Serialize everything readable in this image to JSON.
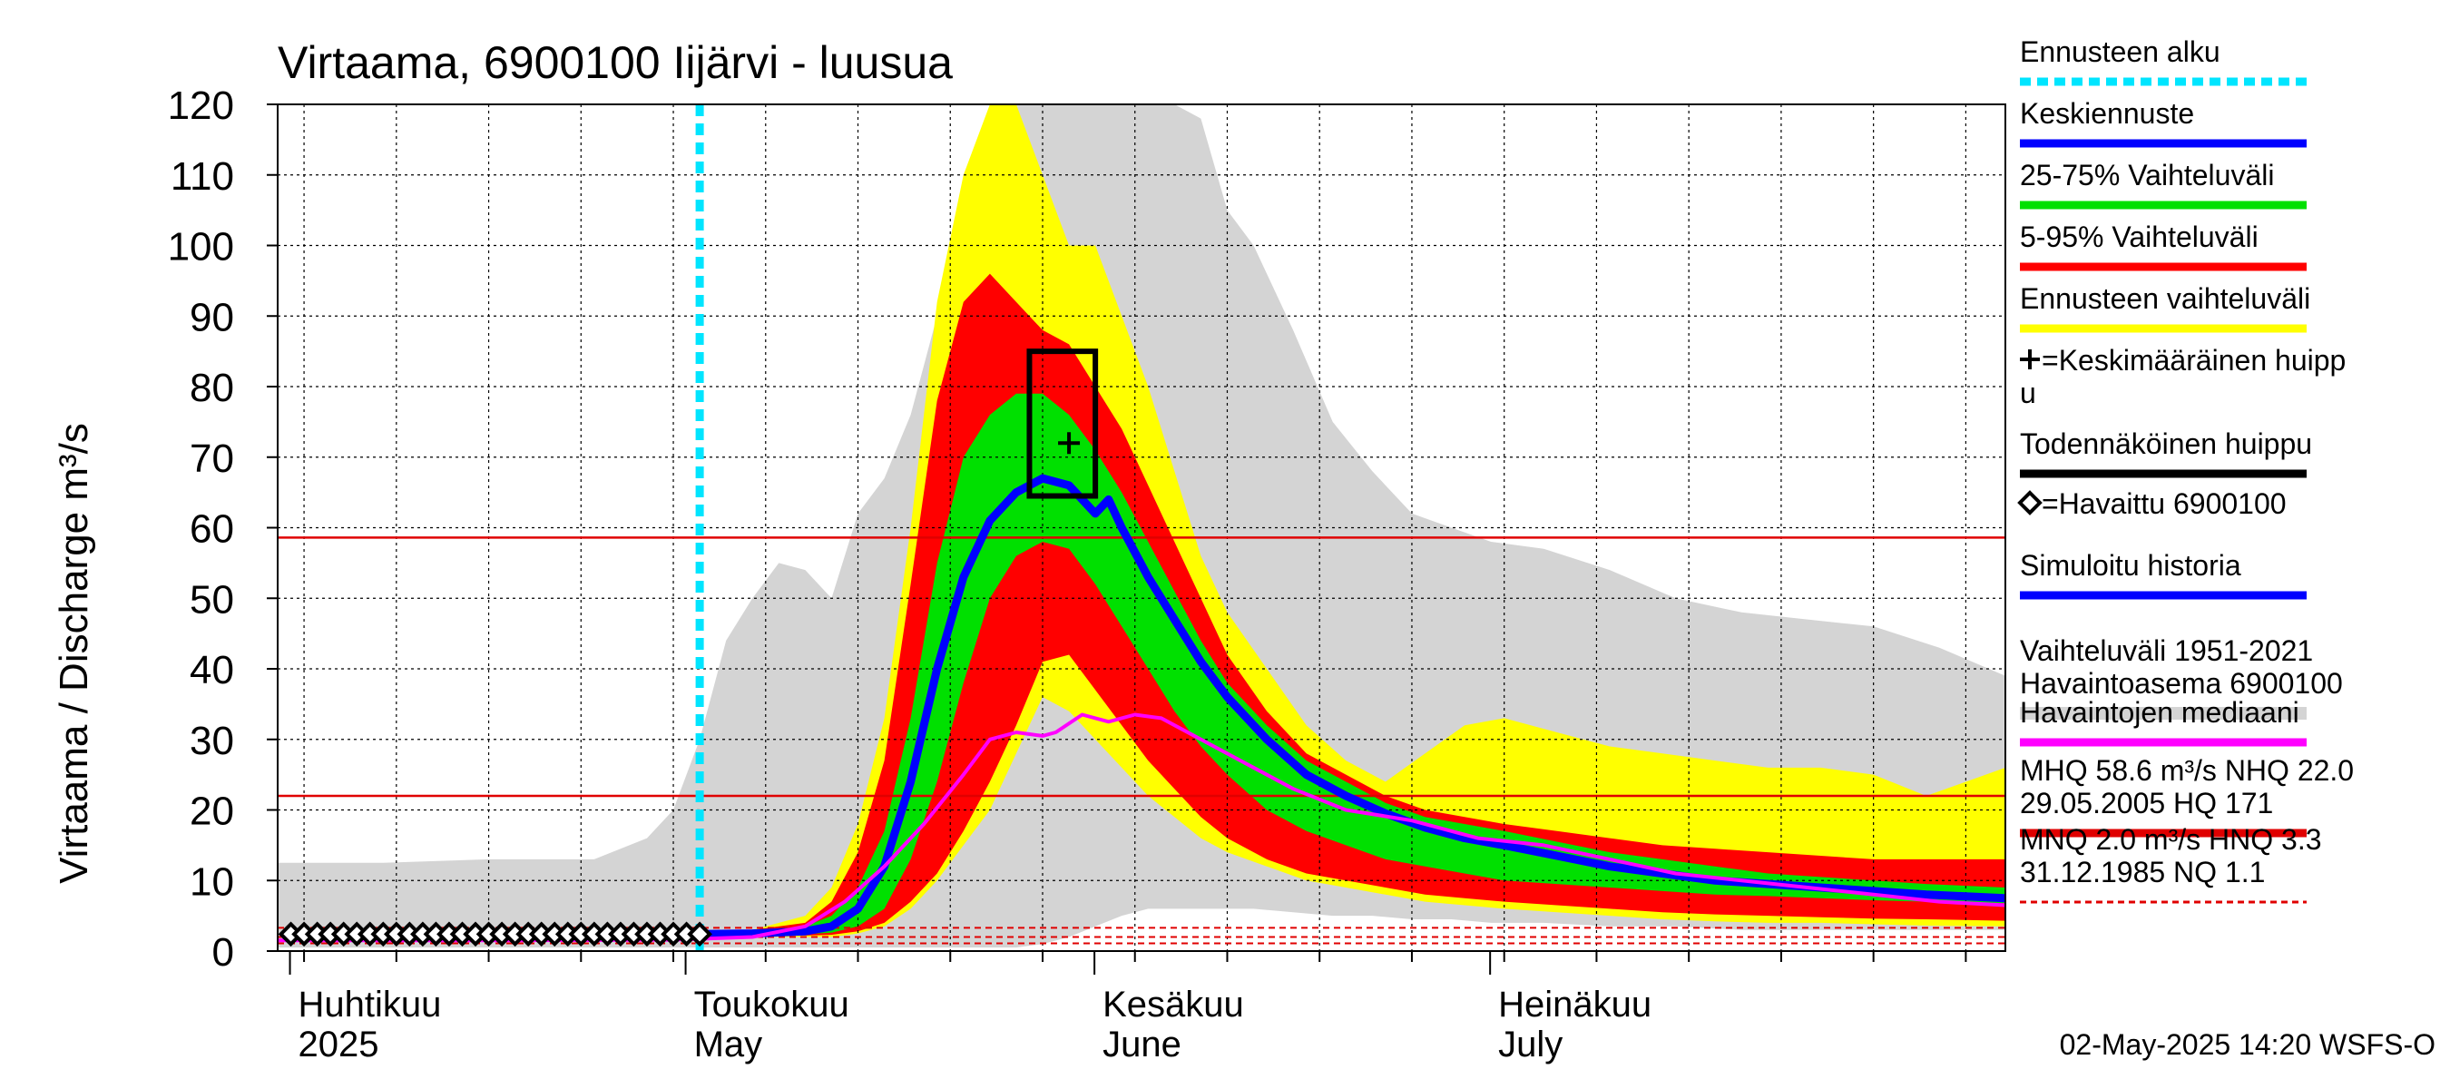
{
  "chart_data": {
    "type": "area",
    "title": "Virtaama, 6900100 Iijärvi - luusua",
    "ylabel": "Virtaama / Discharge    m³/s",
    "ylim": [
      0,
      120
    ],
    "yticks": [
      0,
      10,
      20,
      30,
      40,
      50,
      60,
      70,
      80,
      90,
      100,
      110,
      120
    ],
    "xlim": [
      "2025-03-31",
      "2025-08-09"
    ],
    "month_labels": [
      {
        "date": "2025-04-01",
        "line1": "Huhtikuu",
        "line2": "2025"
      },
      {
        "date": "2025-05-01",
        "line1": "Toukokuu",
        "line2": "May"
      },
      {
        "date": "2025-06-01",
        "line1": "Kesäkuu",
        "line2": "June"
      },
      {
        "date": "2025-07-01",
        "line1": "Heinäkuu",
        "line2": "July"
      }
    ],
    "forecast_start": "2025-05-02",
    "reference_lines": [
      {
        "name": "MHQ",
        "value": 58.6,
        "style": "solid",
        "color": "#e00000"
      },
      {
        "name": "NHQ",
        "value": 22.0,
        "style": "solid",
        "color": "#e00000"
      },
      {
        "name": "MNQ",
        "value": 2.0,
        "style": "dashed",
        "color": "#e00000"
      },
      {
        "name": "HNQ",
        "value": 3.3,
        "style": "dashed",
        "color": "#e00000"
      },
      {
        "name": "NQ",
        "value": 1.1,
        "style": "dashed",
        "color": "#e00000"
      }
    ],
    "probable_peak_box": {
      "x0": "2025-05-27",
      "x1": "2025-06-01",
      "y0": 64.5,
      "y1": 85
    },
    "mean_peak": {
      "date": "2025-05-30",
      "value": 72
    },
    "series": [
      {
        "name": "Vaihteluväli 1951-2021 Havaintoasema 6900100",
        "kind": "band",
        "color": "#d4d4d4",
        "x": [
          "2025-03-31",
          "2025-04-08",
          "2025-04-16",
          "2025-04-24",
          "2025-04-28",
          "2025-04-30",
          "2025-05-02",
          "2025-05-04",
          "2025-05-06",
          "2025-05-08",
          "2025-05-10",
          "2025-05-12",
          "2025-05-14",
          "2025-05-16",
          "2025-05-18",
          "2025-05-20",
          "2025-05-22",
          "2025-05-24",
          "2025-05-26",
          "2025-05-28",
          "2025-05-30",
          "2025-06-01",
          "2025-06-03",
          "2025-06-05",
          "2025-06-07",
          "2025-06-09",
          "2025-06-11",
          "2025-06-13",
          "2025-06-16",
          "2025-06-19",
          "2025-06-22",
          "2025-06-25",
          "2025-06-28",
          "2025-07-01",
          "2025-07-05",
          "2025-07-10",
          "2025-07-15",
          "2025-07-20",
          "2025-07-25",
          "2025-07-30",
          "2025-08-04",
          "2025-08-09"
        ],
        "lower": [
          0.5,
          0.5,
          0.5,
          0.5,
          0.5,
          0.5,
          0.5,
          0.5,
          0.5,
          0.5,
          0.5,
          0.5,
          0.5,
          0.5,
          0.5,
          0.5,
          0.5,
          0.5,
          0.5,
          1.0,
          2.0,
          3.5,
          5.0,
          6.0,
          6.0,
          6.0,
          6.0,
          6.0,
          5.5,
          5.0,
          5.0,
          4.5,
          4.5,
          4.0,
          4.0,
          3.5,
          3.5,
          3.0,
          3.0,
          3.0,
          3.0,
          3.0
        ],
        "upper": [
          12.5,
          12.5,
          13,
          13,
          16,
          20,
          30,
          44,
          50,
          55,
          54,
          50,
          62,
          67,
          76,
          90,
          105,
          120,
          120,
          120,
          120,
          120,
          120,
          120,
          120,
          118,
          105,
          100,
          88,
          75,
          68,
          62,
          60,
          58,
          57,
          54,
          50,
          48,
          47,
          46,
          43,
          39
        ]
      },
      {
        "name": "Ennusteen vaihteluväli",
        "kind": "band",
        "color": "#ffff00",
        "x": [
          "2025-05-02",
          "2025-05-06",
          "2025-05-10",
          "2025-05-12",
          "2025-05-14",
          "2025-05-16",
          "2025-05-18",
          "2025-05-20",
          "2025-05-22",
          "2025-05-24",
          "2025-05-26",
          "2025-05-28",
          "2025-05-30",
          "2025-06-01",
          "2025-06-03",
          "2025-06-05",
          "2025-06-07",
          "2025-06-09",
          "2025-06-11",
          "2025-06-14",
          "2025-06-17",
          "2025-06-20",
          "2025-06-23",
          "2025-06-26",
          "2025-06-29",
          "2025-07-02",
          "2025-07-06",
          "2025-07-10",
          "2025-07-14",
          "2025-07-18",
          "2025-07-22",
          "2025-07-26",
          "2025-07-30",
          "2025-08-03",
          "2025-08-09"
        ],
        "lower": [
          2.0,
          2.0,
          2.0,
          2.0,
          2.5,
          3.5,
          6,
          10,
          15,
          20,
          28,
          36,
          34,
          30,
          26,
          22,
          19,
          16,
          14,
          12,
          10,
          9,
          8,
          7,
          6.5,
          6,
          5.5,
          5,
          4.5,
          4.2,
          4,
          4,
          3.8,
          3.6,
          3.5
        ],
        "upper": [
          2.5,
          3,
          5,
          9,
          18,
          33,
          60,
          92,
          110,
          120,
          120,
          110,
          100,
          100,
          90,
          80,
          68,
          56,
          48,
          40,
          32,
          27,
          24,
          28,
          32,
          33,
          31,
          29,
          28,
          27,
          26,
          26,
          25,
          22,
          26
        ]
      },
      {
        "name": "5-95% Vaihteluväli",
        "kind": "band",
        "color": "#ff0000",
        "x": [
          "2025-05-02",
          "2025-05-06",
          "2025-05-10",
          "2025-05-12",
          "2025-05-14",
          "2025-05-16",
          "2025-05-18",
          "2025-05-20",
          "2025-05-22",
          "2025-05-24",
          "2025-05-26",
          "2025-05-28",
          "2025-05-30",
          "2025-06-01",
          "2025-06-03",
          "2025-06-05",
          "2025-06-07",
          "2025-06-09",
          "2025-06-11",
          "2025-06-14",
          "2025-06-17",
          "2025-06-20",
          "2025-06-23",
          "2025-06-26",
          "2025-06-29",
          "2025-07-02",
          "2025-07-06",
          "2025-07-10",
          "2025-07-14",
          "2025-07-18",
          "2025-07-22",
          "2025-07-26",
          "2025-07-30",
          "2025-08-03",
          "2025-08-09"
        ],
        "lower": [
          2.2,
          2.2,
          2.2,
          2.3,
          2.8,
          4,
          7,
          11,
          17,
          24,
          32,
          41,
          42,
          37,
          32,
          27,
          23,
          19,
          16,
          13,
          11,
          10,
          9,
          8,
          7.5,
          7,
          6.5,
          6,
          5.5,
          5.2,
          5,
          4.8,
          4.6,
          4.5,
          4.3
        ],
        "upper": [
          2.5,
          3,
          4,
          7,
          14,
          27,
          52,
          78,
          92,
          96,
          92,
          88,
          86,
          80,
          74,
          66,
          58,
          50,
          42,
          34,
          28,
          25,
          22,
          20,
          19,
          18,
          17,
          16,
          15,
          14.5,
          14,
          13.5,
          13,
          13,
          13
        ]
      },
      {
        "name": "25-75% Vaihteluväli",
        "kind": "band",
        "color": "#00e000",
        "x": [
          "2025-05-02",
          "2025-05-06",
          "2025-05-10",
          "2025-05-12",
          "2025-05-14",
          "2025-05-16",
          "2025-05-18",
          "2025-05-20",
          "2025-05-22",
          "2025-05-24",
          "2025-05-26",
          "2025-05-28",
          "2025-05-30",
          "2025-06-01",
          "2025-06-03",
          "2025-06-05",
          "2025-06-07",
          "2025-06-09",
          "2025-06-11",
          "2025-06-14",
          "2025-06-17",
          "2025-06-20",
          "2025-06-23",
          "2025-06-26",
          "2025-06-29",
          "2025-07-02",
          "2025-07-06",
          "2025-07-10",
          "2025-07-14",
          "2025-07-18",
          "2025-07-22",
          "2025-07-26",
          "2025-07-30",
          "2025-08-03",
          "2025-08-09"
        ],
        "lower": [
          2.3,
          2.3,
          2.4,
          2.6,
          3.5,
          6,
          13,
          24,
          38,
          50,
          56,
          58,
          57,
          52,
          46,
          40,
          34,
          29,
          25,
          20,
          17,
          15,
          13,
          12,
          11,
          10,
          9.5,
          9,
          8.5,
          8,
          7.8,
          7.5,
          7.2,
          7,
          6.8
        ],
        "upper": [
          2.5,
          2.8,
          3.5,
          5,
          9,
          17,
          33,
          55,
          70,
          76,
          79,
          79,
          76,
          71,
          65,
          58,
          51,
          44,
          38,
          32,
          27,
          24,
          21,
          19,
          18,
          17,
          15.5,
          14,
          13,
          12,
          11,
          10.5,
          10,
          9.5,
          9
        ]
      },
      {
        "name": "Keskiennuste",
        "kind": "line",
        "color": "#0000ff",
        "x": [
          "2025-05-02",
          "2025-05-06",
          "2025-05-10",
          "2025-05-12",
          "2025-05-14",
          "2025-05-16",
          "2025-05-18",
          "2025-05-20",
          "2025-05-22",
          "2025-05-24",
          "2025-05-26",
          "2025-05-28",
          "2025-05-30",
          "2025-06-01",
          "2025-06-02",
          "2025-06-03",
          "2025-06-05",
          "2025-06-07",
          "2025-06-09",
          "2025-06-11",
          "2025-06-14",
          "2025-06-17",
          "2025-06-20",
          "2025-06-23",
          "2025-06-26",
          "2025-06-29",
          "2025-07-02",
          "2025-07-06",
          "2025-07-10",
          "2025-07-14",
          "2025-07-18",
          "2025-07-22",
          "2025-07-26",
          "2025-07-30",
          "2025-08-03",
          "2025-08-09"
        ],
        "y": [
          2.4,
          2.5,
          2.8,
          3.5,
          6,
          12,
          24,
          40,
          53,
          61,
          65,
          67,
          66,
          62,
          64,
          60,
          53,
          47,
          41,
          36,
          30,
          25,
          22,
          19.5,
          17.5,
          16,
          15,
          13.5,
          12,
          11,
          10,
          9.5,
          9,
          8.5,
          8,
          7.5
        ]
      },
      {
        "name": "Havaintojen mediaani",
        "kind": "line",
        "color": "#ff00ff",
        "x": [
          "2025-03-31",
          "2025-04-15",
          "2025-04-30",
          "2025-05-06",
          "2025-05-10",
          "2025-05-13",
          "2025-05-16",
          "2025-05-19",
          "2025-05-22",
          "2025-05-24",
          "2025-05-26",
          "2025-05-28",
          "2025-05-29",
          "2025-05-31",
          "2025-06-02",
          "2025-06-04",
          "2025-06-06",
          "2025-06-09",
          "2025-06-12",
          "2025-06-16",
          "2025-06-20",
          "2025-06-25",
          "2025-06-30",
          "2025-07-05",
          "2025-07-10",
          "2025-07-15",
          "2025-07-20",
          "2025-07-25",
          "2025-07-30",
          "2025-08-04",
          "2025-08-09"
        ],
        "y": [
          1.5,
          1.5,
          1.6,
          2.0,
          3.5,
          7,
          12,
          18,
          25,
          30,
          31,
          30.5,
          31,
          33.5,
          32.5,
          33.5,
          33,
          30,
          27,
          23,
          20,
          18.5,
          16,
          15,
          13,
          11,
          10,
          9,
          8,
          7,
          6.5
        ]
      },
      {
        "name": "Havaittu 6900100",
        "kind": "markers",
        "color": "#000000",
        "x": [
          "2025-04-01",
          "2025-04-02",
          "2025-04-03",
          "2025-04-04",
          "2025-04-05",
          "2025-04-06",
          "2025-04-07",
          "2025-04-08",
          "2025-04-09",
          "2025-04-10",
          "2025-04-11",
          "2025-04-12",
          "2025-04-13",
          "2025-04-14",
          "2025-04-15",
          "2025-04-16",
          "2025-04-17",
          "2025-04-18",
          "2025-04-19",
          "2025-04-20",
          "2025-04-21",
          "2025-04-22",
          "2025-04-23",
          "2025-04-24",
          "2025-04-25",
          "2025-04-26",
          "2025-04-27",
          "2025-04-28",
          "2025-04-29",
          "2025-04-30",
          "2025-05-01",
          "2025-05-02"
        ],
        "y": [
          2.4,
          2.4,
          2.4,
          2.4,
          2.4,
          2.4,
          2.4,
          2.4,
          2.4,
          2.4,
          2.4,
          2.4,
          2.4,
          2.4,
          2.4,
          2.4,
          2.4,
          2.4,
          2.4,
          2.4,
          2.4,
          2.4,
          2.4,
          2.4,
          2.4,
          2.4,
          2.4,
          2.4,
          2.4,
          2.4,
          2.4,
          2.4
        ]
      }
    ],
    "legend": [
      {
        "label": "Ennusteen alku",
        "style": "dotted",
        "color": "#00e5ff"
      },
      {
        "label": "Keskiennuste",
        "style": "line",
        "color": "#0000ff"
      },
      {
        "label": "25-75% Vaihteluväli",
        "style": "line",
        "color": "#00e000"
      },
      {
        "label": "5-95% Vaihteluväli",
        "style": "line",
        "color": "#ff0000"
      },
      {
        "label": "Ennusteen vaihteluväli",
        "style": "line",
        "color": "#ffff00"
      },
      {
        "label": "=Keskimääräinen huipp",
        "label2": "u",
        "style": "plus-marker",
        "color": "#000000"
      },
      {
        "label": "Todennäköinen huippu",
        "style": "line",
        "color": "#000000"
      },
      {
        "label": "=Havaittu 6900100",
        "style": "diamond-marker",
        "color": "#000000"
      },
      {
        "label": "Simuloitu historia",
        "style": "line",
        "color": "#0000ff"
      },
      {
        "label": "Vaihteluväli 1951-2021",
        "label2": " Havaintoasema 6900100",
        "style": "line",
        "color": "#d4d4d4"
      },
      {
        "label": "Havaintojen mediaani",
        "style": "line",
        "color": "#ff00ff"
      },
      {
        "label": "MHQ 58.6 m³/s NHQ 22.0",
        "label2": "29.05.2005 HQ  171",
        "style": "line",
        "color": "#e00000"
      },
      {
        "label": "MNQ  2.0 m³/s HNQ  3.3",
        "label2": "31.12.1985 NQ  1.1",
        "style": "dashed",
        "color": "#e00000"
      }
    ]
  },
  "footer": {
    "timestamp": "02-May-2025 14:20 WSFS-O"
  }
}
